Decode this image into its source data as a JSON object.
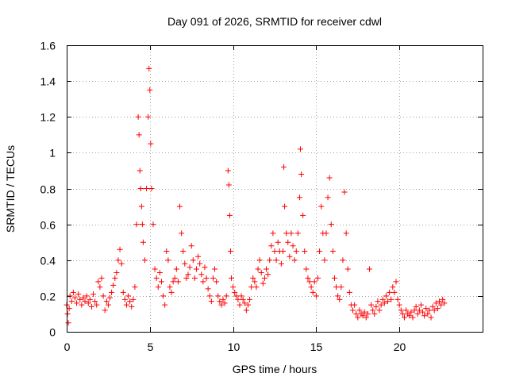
{
  "chart_data": {
    "type": "scatter",
    "title": "Day 091 of 2026, SRMTID for receiver cdwl",
    "xlabel": "GPS time / hours",
    "ylabel": "SRMTID / TECUs",
    "xlim": [
      0,
      25
    ],
    "ylim": [
      0,
      1.6
    ],
    "xticks": [
      0,
      5,
      10,
      15,
      20
    ],
    "xtick_labels": [
      "0",
      "5",
      "10",
      "15",
      "20"
    ],
    "yticks": [
      0,
      0.2,
      0.4,
      0.6,
      0.8,
      1.0,
      1.2,
      1.4,
      1.6
    ],
    "ytick_labels": [
      "0",
      "0.2",
      "0.4",
      "0.6",
      "0.8",
      "1",
      "1.2",
      "1.4",
      "1.6"
    ],
    "grid": true,
    "marker": "+",
    "color": "#ff0000",
    "series": [
      {
        "name": "SRMTID",
        "points": [
          [
            0.0,
            0.15
          ],
          [
            0.05,
            0.1
          ],
          [
            0.1,
            0.05
          ],
          [
            0.15,
            0.13
          ],
          [
            0.2,
            0.2
          ],
          [
            0.3,
            0.17
          ],
          [
            0.4,
            0.22
          ],
          [
            0.5,
            0.19
          ],
          [
            0.6,
            0.16
          ],
          [
            0.7,
            0.21
          ],
          [
            0.8,
            0.18
          ],
          [
            0.9,
            0.15
          ],
          [
            1.0,
            0.19
          ],
          [
            1.1,
            0.17
          ],
          [
            1.2,
            0.2
          ],
          [
            1.3,
            0.16
          ],
          [
            1.4,
            0.18
          ],
          [
            1.5,
            0.14
          ],
          [
            1.6,
            0.21
          ],
          [
            1.7,
            0.17
          ],
          [
            1.8,
            0.15
          ],
          [
            1.9,
            0.28
          ],
          [
            2.0,
            0.25
          ],
          [
            2.1,
            0.3
          ],
          [
            2.2,
            0.2
          ],
          [
            2.3,
            0.12
          ],
          [
            2.4,
            0.17
          ],
          [
            2.5,
            0.15
          ],
          [
            2.6,
            0.19
          ],
          [
            2.7,
            0.22
          ],
          [
            2.8,
            0.26
          ],
          [
            2.9,
            0.3
          ],
          [
            3.0,
            0.33
          ],
          [
            3.1,
            0.4
          ],
          [
            3.2,
            0.46
          ],
          [
            3.3,
            0.38
          ],
          [
            3.4,
            0.22
          ],
          [
            3.5,
            0.18
          ],
          [
            3.6,
            0.15
          ],
          [
            3.7,
            0.2
          ],
          [
            3.8,
            0.17
          ],
          [
            3.9,
            0.14
          ],
          [
            4.0,
            0.18
          ],
          [
            4.1,
            0.25
          ],
          [
            4.2,
            0.6
          ],
          [
            4.3,
            1.2
          ],
          [
            4.35,
            1.1
          ],
          [
            4.4,
            0.9
          ],
          [
            4.45,
            0.8
          ],
          [
            4.5,
            0.7
          ],
          [
            4.55,
            0.6
          ],
          [
            4.6,
            0.5
          ],
          [
            4.7,
            0.4
          ],
          [
            4.8,
            0.8
          ],
          [
            4.9,
            1.2
          ],
          [
            4.95,
            1.47
          ],
          [
            5.0,
            1.35
          ],
          [
            5.05,
            1.05
          ],
          [
            5.1,
            0.8
          ],
          [
            5.2,
            0.6
          ],
          [
            5.3,
            0.35
          ],
          [
            5.4,
            0.3
          ],
          [
            5.5,
            0.25
          ],
          [
            5.6,
            0.33
          ],
          [
            5.7,
            0.28
          ],
          [
            5.8,
            0.2
          ],
          [
            5.9,
            0.15
          ],
          [
            6.0,
            0.45
          ],
          [
            6.1,
            0.4
          ],
          [
            6.2,
            0.25
          ],
          [
            6.3,
            0.22
          ],
          [
            6.4,
            0.28
          ],
          [
            6.5,
            0.3
          ],
          [
            6.6,
            0.35
          ],
          [
            6.7,
            0.28
          ],
          [
            6.8,
            0.7
          ],
          [
            6.9,
            0.55
          ],
          [
            7.0,
            0.45
          ],
          [
            7.1,
            0.38
          ],
          [
            7.2,
            0.3
          ],
          [
            7.3,
            0.32
          ],
          [
            7.4,
            0.36
          ],
          [
            7.5,
            0.48
          ],
          [
            7.6,
            0.4
          ],
          [
            7.7,
            0.3
          ],
          [
            7.8,
            0.35
          ],
          [
            7.9,
            0.42
          ],
          [
            8.0,
            0.38
          ],
          [
            8.1,
            0.32
          ],
          [
            8.2,
            0.28
          ],
          [
            8.3,
            0.36
          ],
          [
            8.4,
            0.3
          ],
          [
            8.5,
            0.24
          ],
          [
            8.6,
            0.2
          ],
          [
            8.7,
            0.17
          ],
          [
            8.8,
            0.3
          ],
          [
            8.9,
            0.35
          ],
          [
            9.0,
            0.28
          ],
          [
            9.1,
            0.2
          ],
          [
            9.2,
            0.17
          ],
          [
            9.3,
            0.15
          ],
          [
            9.4,
            0.18
          ],
          [
            9.5,
            0.16
          ],
          [
            9.6,
            0.2
          ],
          [
            9.7,
            0.9
          ],
          [
            9.75,
            0.82
          ],
          [
            9.8,
            0.65
          ],
          [
            9.85,
            0.45
          ],
          [
            9.9,
            0.3
          ],
          [
            10.0,
            0.25
          ],
          [
            10.1,
            0.22
          ],
          [
            10.2,
            0.2
          ],
          [
            10.3,
            0.18
          ],
          [
            10.4,
            0.15
          ],
          [
            10.5,
            0.2
          ],
          [
            10.6,
            0.18
          ],
          [
            10.7,
            0.16
          ],
          [
            10.8,
            0.12
          ],
          [
            10.9,
            0.15
          ],
          [
            11.0,
            0.18
          ],
          [
            11.1,
            0.25
          ],
          [
            11.2,
            0.3
          ],
          [
            11.3,
            0.28
          ],
          [
            11.4,
            0.25
          ],
          [
            11.5,
            0.35
          ],
          [
            11.6,
            0.4
          ],
          [
            11.7,
            0.33
          ],
          [
            11.8,
            0.27
          ],
          [
            11.9,
            0.3
          ],
          [
            12.0,
            0.35
          ],
          [
            12.1,
            0.32
          ],
          [
            12.2,
            0.4
          ],
          [
            12.3,
            0.48
          ],
          [
            12.4,
            0.55
          ],
          [
            12.5,
            0.45
          ],
          [
            12.6,
            0.4
          ],
          [
            12.7,
            0.5
          ],
          [
            12.8,
            0.45
          ],
          [
            12.9,
            0.38
          ],
          [
            13.0,
            0.45
          ],
          [
            13.05,
            0.92
          ],
          [
            13.1,
            0.7
          ],
          [
            13.2,
            0.55
          ],
          [
            13.3,
            0.5
          ],
          [
            13.4,
            0.42
          ],
          [
            13.5,
            0.55
          ],
          [
            13.6,
            0.48
          ],
          [
            13.7,
            0.4
          ],
          [
            13.8,
            0.45
          ],
          [
            13.9,
            0.55
          ],
          [
            14.0,
            0.75
          ],
          [
            14.05,
            1.02
          ],
          [
            14.1,
            0.88
          ],
          [
            14.2,
            0.65
          ],
          [
            14.3,
            0.45
          ],
          [
            14.4,
            0.35
          ],
          [
            14.5,
            0.3
          ],
          [
            14.6,
            0.28
          ],
          [
            14.7,
            0.25
          ],
          [
            14.8,
            0.22
          ],
          [
            14.9,
            0.28
          ],
          [
            15.0,
            0.2
          ],
          [
            15.1,
            0.3
          ],
          [
            15.2,
            0.45
          ],
          [
            15.3,
            0.7
          ],
          [
            15.4,
            0.55
          ],
          [
            15.5,
            0.4
          ],
          [
            15.6,
            0.55
          ],
          [
            15.7,
            0.75
          ],
          [
            15.8,
            0.86
          ],
          [
            15.9,
            0.6
          ],
          [
            16.0,
            0.45
          ],
          [
            16.1,
            0.3
          ],
          [
            16.2,
            0.25
          ],
          [
            16.3,
            0.2
          ],
          [
            16.4,
            0.18
          ],
          [
            16.5,
            0.25
          ],
          [
            16.6,
            0.4
          ],
          [
            16.7,
            0.78
          ],
          [
            16.8,
            0.55
          ],
          [
            16.9,
            0.35
          ],
          [
            17.0,
            0.22
          ],
          [
            17.1,
            0.15
          ],
          [
            17.2,
            0.12
          ],
          [
            17.3,
            0.15
          ],
          [
            17.4,
            0.1
          ],
          [
            17.5,
            0.08
          ],
          [
            17.6,
            0.12
          ],
          [
            17.7,
            0.1
          ],
          [
            17.8,
            0.09
          ],
          [
            17.9,
            0.11
          ],
          [
            18.0,
            0.08
          ],
          [
            18.1,
            0.1
          ],
          [
            18.2,
            0.35
          ],
          [
            18.3,
            0.15
          ],
          [
            18.4,
            0.12
          ],
          [
            18.5,
            0.1
          ],
          [
            18.6,
            0.14
          ],
          [
            18.7,
            0.17
          ],
          [
            18.8,
            0.12
          ],
          [
            18.9,
            0.15
          ],
          [
            19.0,
            0.18
          ],
          [
            19.1,
            0.16
          ],
          [
            19.2,
            0.2
          ],
          [
            19.3,
            0.17
          ],
          [
            19.4,
            0.22
          ],
          [
            19.5,
            0.18
          ],
          [
            19.6,
            0.25
          ],
          [
            19.7,
            0.22
          ],
          [
            19.8,
            0.28
          ],
          [
            19.9,
            0.18
          ],
          [
            20.0,
            0.15
          ],
          [
            20.1,
            0.12
          ],
          [
            20.2,
            0.1
          ],
          [
            20.3,
            0.08
          ],
          [
            20.4,
            0.12
          ],
          [
            20.5,
            0.1
          ],
          [
            20.6,
            0.09
          ],
          [
            20.7,
            0.11
          ],
          [
            20.8,
            0.08
          ],
          [
            20.9,
            0.12
          ],
          [
            21.0,
            0.14
          ],
          [
            21.1,
            0.1
          ],
          [
            21.2,
            0.12
          ],
          [
            21.3,
            0.15
          ],
          [
            21.4,
            0.11
          ],
          [
            21.5,
            0.09
          ],
          [
            21.6,
            0.13
          ],
          [
            21.7,
            0.1
          ],
          [
            21.8,
            0.12
          ],
          [
            21.9,
            0.08
          ],
          [
            22.0,
            0.14
          ],
          [
            22.1,
            0.12
          ],
          [
            22.2,
            0.16
          ],
          [
            22.3,
            0.13
          ],
          [
            22.4,
            0.17
          ],
          [
            22.5,
            0.15
          ],
          [
            22.6,
            0.18
          ],
          [
            22.7,
            0.16
          ]
        ]
      }
    ]
  }
}
